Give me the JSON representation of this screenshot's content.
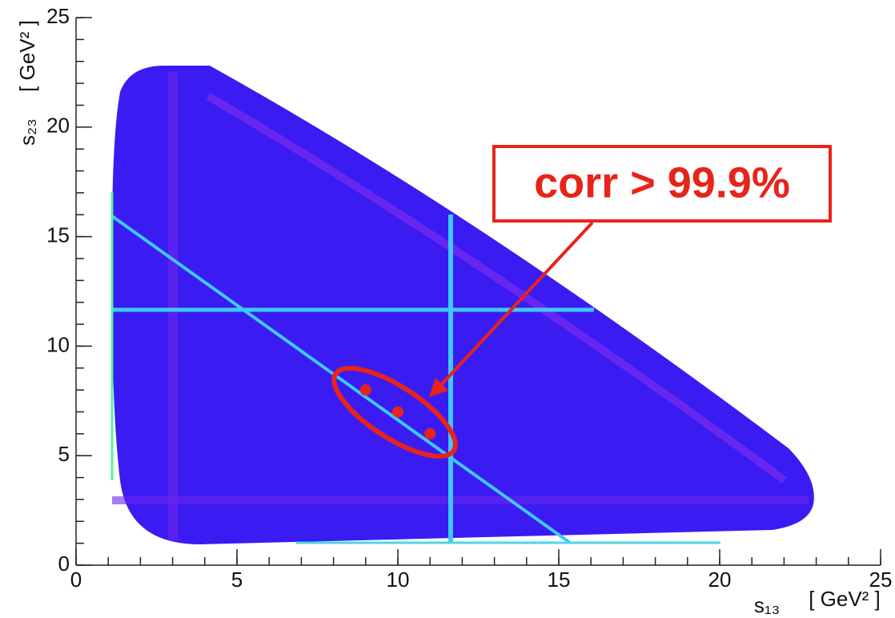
{
  "chart_data": {
    "type": "scatter",
    "x_label_symbol": "s₁₃",
    "x_label_unit": "[ GeV² ]",
    "y_label_symbol": "s₂₃",
    "y_label_unit": "[ GeV² ]",
    "annotation": "corr > 99.9%",
    "x": [
      9,
      10,
      11
    ],
    "values": [
      8,
      7,
      6
    ],
    "color": "#e8231a",
    "xlim": [
      0,
      25
    ],
    "ylim": [
      0,
      25
    ],
    "xticks": [
      0,
      5,
      10,
      15,
      20,
      25
    ],
    "yticks": [
      0,
      5,
      10,
      15,
      20,
      25
    ]
  }
}
